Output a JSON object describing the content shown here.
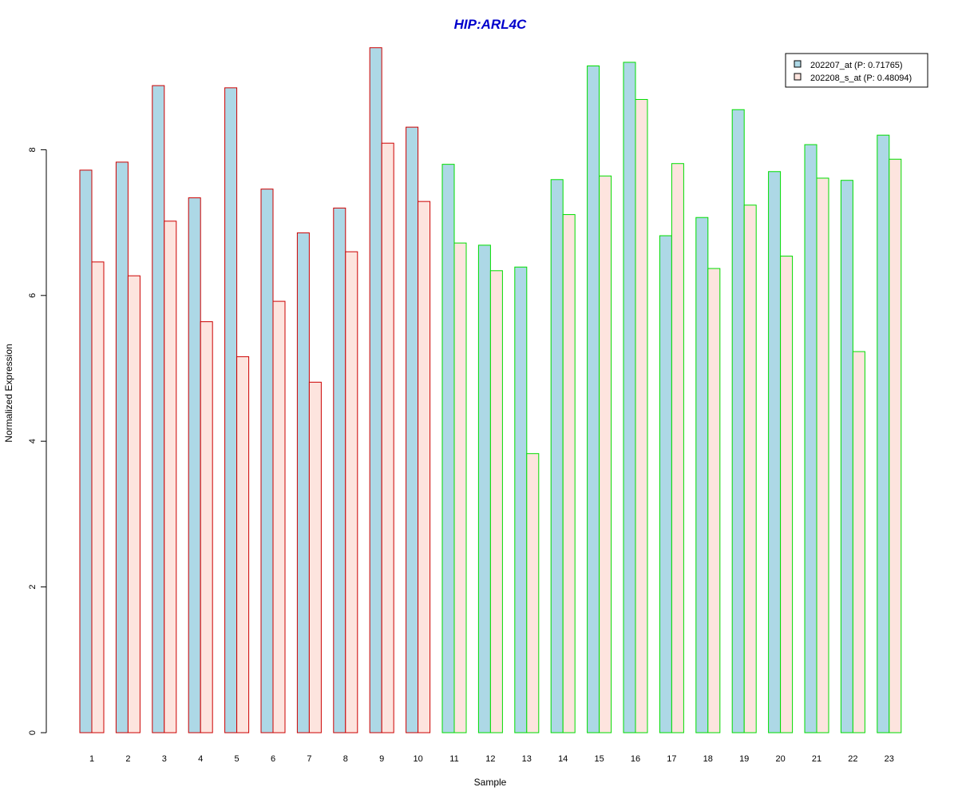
{
  "chart_data": {
    "type": "bar",
    "title": "HIP:ARL4C",
    "xlabel": "Sample",
    "ylabel": "Normalized Expression",
    "ylim": [
      0,
      9.6
    ],
    "yticks": [
      0,
      2,
      4,
      6,
      8
    ],
    "categories": [
      "1",
      "2",
      "3",
      "4",
      "5",
      "6",
      "7",
      "8",
      "9",
      "10",
      "11",
      "12",
      "13",
      "14",
      "15",
      "16",
      "17",
      "18",
      "19",
      "20",
      "21",
      "22",
      "23"
    ],
    "group_border_colors": [
      "#cc0000",
      "#cc0000",
      "#cc0000",
      "#cc0000",
      "#cc0000",
      "#cc0000",
      "#cc0000",
      "#cc0000",
      "#cc0000",
      "#cc0000",
      "#00dd00",
      "#00dd00",
      "#00dd00",
      "#00dd00",
      "#00dd00",
      "#00dd00",
      "#00dd00",
      "#00dd00",
      "#00dd00",
      "#00dd00",
      "#00dd00",
      "#00dd00",
      "#00dd00"
    ],
    "series": [
      {
        "name": "202207_at (P: 0.71765)",
        "fill": "#add8e6",
        "values": [
          7.72,
          7.83,
          8.88,
          7.34,
          8.85,
          7.46,
          6.86,
          7.2,
          9.4,
          8.31,
          7.8,
          6.69,
          6.39,
          7.59,
          9.15,
          9.2,
          6.82,
          7.07,
          8.55,
          7.7,
          8.07,
          7.58,
          8.2
        ]
      },
      {
        "name": "202208_s_at (P: 0.48094)",
        "fill": "#fde4de",
        "values": [
          6.46,
          6.27,
          7.02,
          5.64,
          5.16,
          5.92,
          4.81,
          6.6,
          8.09,
          7.29,
          6.72,
          6.34,
          3.83,
          7.11,
          7.64,
          8.69,
          7.81,
          6.37,
          7.24,
          6.54,
          7.61,
          5.23,
          7.87
        ]
      }
    ],
    "legend_position": "top-right"
  }
}
